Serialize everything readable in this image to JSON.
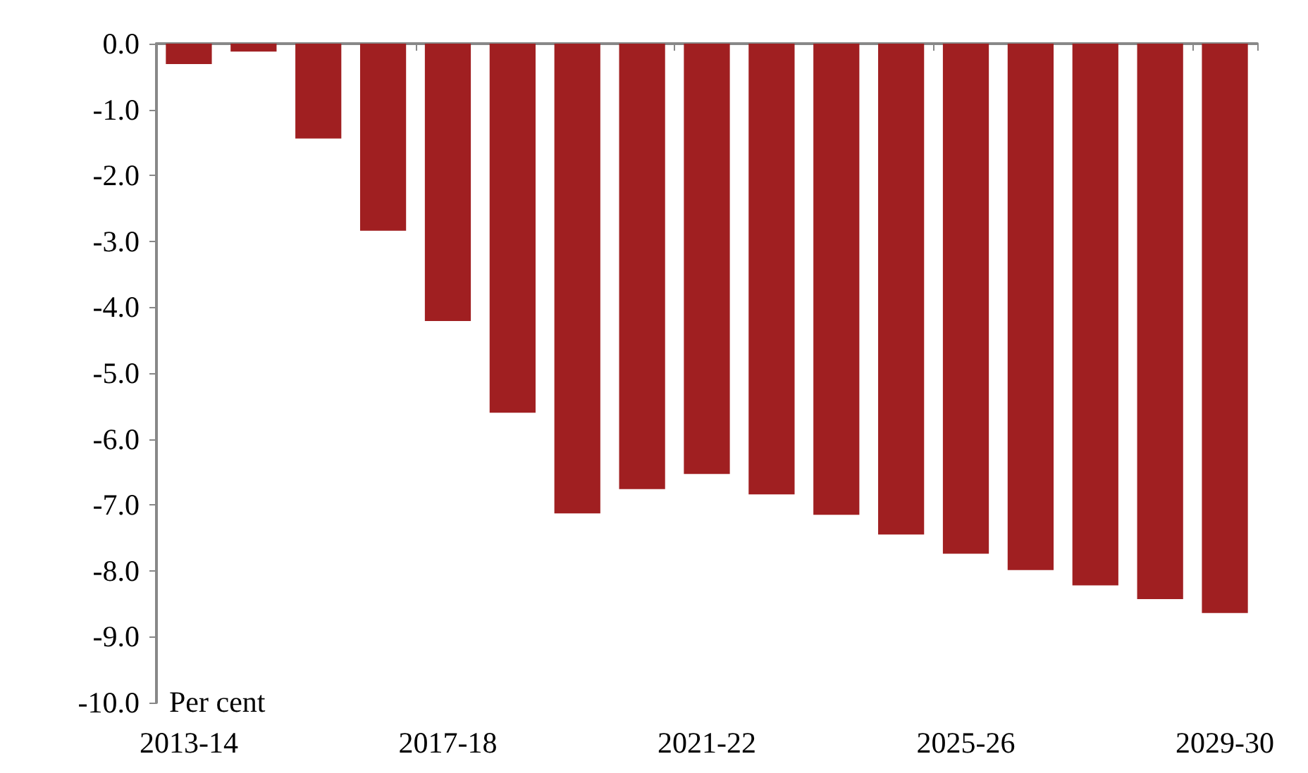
{
  "chart_data": {
    "type": "bar",
    "ylabel": "Per cent",
    "categories": [
      "2013-14",
      null,
      null,
      null,
      "2017-18",
      null,
      null,
      null,
      "2021-22",
      null,
      null,
      null,
      "2025-26",
      null,
      null,
      null,
      "2029-30"
    ],
    "values": [
      -0.31,
      -0.12,
      -1.44,
      -2.84,
      -4.21,
      -5.6,
      -7.13,
      -6.76,
      -6.53,
      -6.84,
      -7.15,
      -7.45,
      -7.74,
      -7.99,
      -8.22,
      -8.43,
      -8.64
    ],
    "color": "#a01f21",
    "ylim": [
      -10,
      0
    ],
    "yticks": [
      {
        "value": -10,
        "label": "-10.0"
      },
      {
        "value": -9,
        "label": "-9.0"
      },
      {
        "value": -8,
        "label": "-8.0"
      },
      {
        "value": -7,
        "label": "-7.0"
      },
      {
        "value": -6,
        "label": "-6.0"
      },
      {
        "value": -5,
        "label": "-5.0"
      },
      {
        "value": -4,
        "label": "-4.0"
      },
      {
        "value": -3,
        "label": "-3.0"
      },
      {
        "value": -2,
        "label": "-2.0"
      },
      {
        "value": -1,
        "label": "-1.0"
      },
      {
        "value": 0,
        "label": "0.0"
      }
    ],
    "grid": false
  }
}
